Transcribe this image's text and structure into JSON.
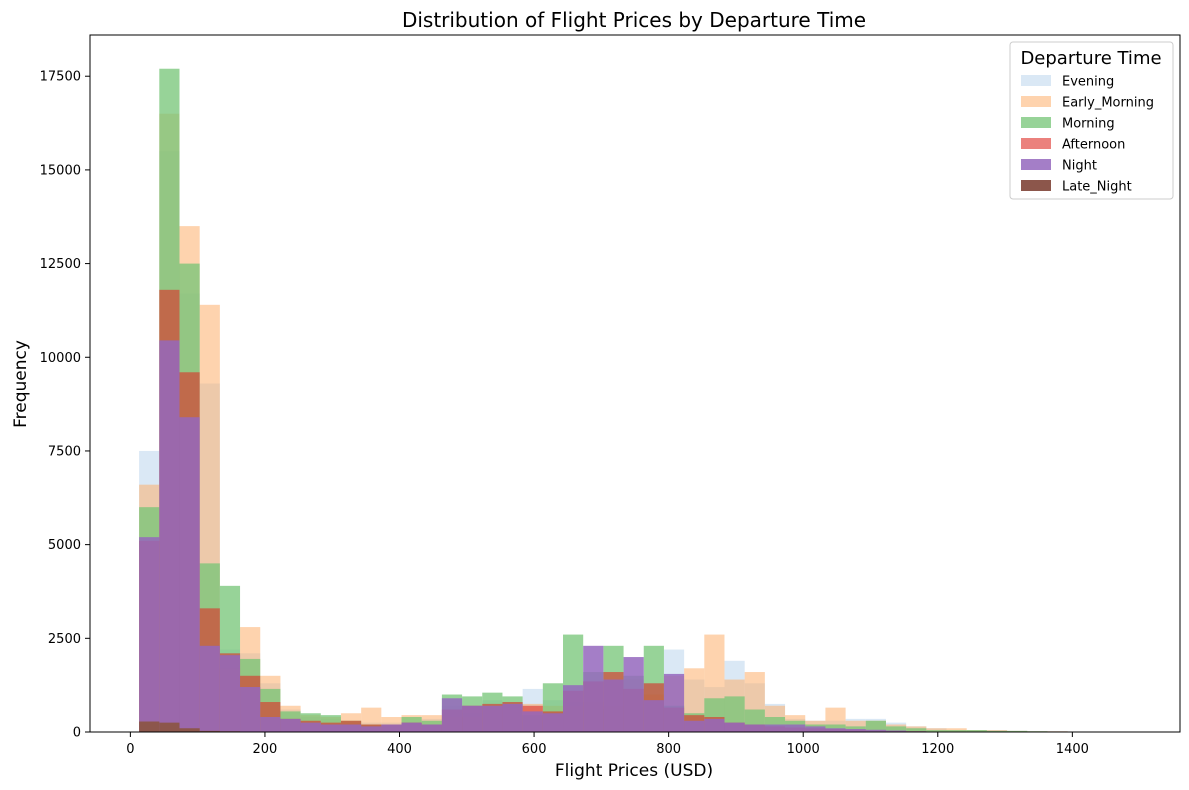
{
  "chart_data": {
    "type": "histogram",
    "title": "Distribution of Flight Prices by Departure Time",
    "xlabel": "Flight Prices (USD)",
    "ylabel": "Frequency",
    "xlim": [
      -60,
      1560
    ],
    "ylim": [
      0,
      18600
    ],
    "xticks": [
      0,
      200,
      400,
      600,
      800,
      1000,
      1200,
      1400
    ],
    "yticks": [
      0,
      2500,
      5000,
      7500,
      10000,
      12500,
      15000,
      17500
    ],
    "grid": false,
    "legend": {
      "title": "Departure Time",
      "placement": "top-right"
    },
    "series": [
      {
        "name": "Evening",
        "color": "#c6dbef",
        "alpha": 0.65,
        "bin_start": 13,
        "bin_width": 30,
        "counts": [
          7500,
          15500,
          11700,
          9300,
          2200,
          2100,
          1300,
          600,
          400,
          350,
          250,
          250,
          250,
          250,
          350,
          700,
          500,
          850,
          800,
          1150,
          850,
          800,
          600,
          400,
          500,
          1300,
          2200,
          1400,
          1200,
          1900,
          1300,
          750,
          350,
          300,
          300,
          350,
          350,
          250,
          150,
          100,
          50,
          50,
          50,
          30,
          20,
          20,
          10,
          10,
          10,
          5
        ]
      },
      {
        "name": "Early_Morning",
        "color": "#fdae6b",
        "alpha": 0.55,
        "bin_start": 13,
        "bin_width": 30,
        "counts": [
          6600,
          16500,
          13500,
          11400,
          1700,
          2800,
          1500,
          700,
          450,
          400,
          500,
          650,
          400,
          450,
          450,
          400,
          400,
          700,
          650,
          750,
          700,
          700,
          800,
          700,
          1400,
          1000,
          1500,
          1700,
          2600,
          1400,
          1600,
          700,
          450,
          300,
          650,
          300,
          300,
          200,
          150,
          100,
          100,
          50,
          50,
          30,
          20,
          20,
          10,
          10,
          10,
          5
        ]
      },
      {
        "name": "Morning",
        "color": "#74c476",
        "alpha": 0.75,
        "bin_start": 13,
        "bin_width": 30,
        "counts": [
          6000,
          17700,
          12500,
          4500,
          3900,
          1950,
          1150,
          550,
          500,
          450,
          300,
          200,
          200,
          400,
          300,
          1000,
          950,
          1050,
          950,
          450,
          1300,
          2600,
          1600,
          2300,
          1500,
          2300,
          700,
          500,
          900,
          950,
          600,
          400,
          300,
          200,
          200,
          150,
          300,
          150,
          100,
          50,
          50,
          50,
          30,
          30,
          20,
          10,
          10,
          10,
          5,
          5
        ]
      },
      {
        "name": "Afternoon",
        "color": "#de2d26",
        "alpha": 0.6,
        "bin_start": 13,
        "bin_width": 30,
        "counts": [
          5100,
          11800,
          9600,
          3300,
          2100,
          1500,
          800,
          350,
          300,
          250,
          300,
          200,
          200,
          250,
          200,
          600,
          700,
          750,
          800,
          700,
          550,
          1100,
          1350,
          1600,
          1150,
          1300,
          650,
          450,
          400,
          250,
          200,
          150,
          120,
          100,
          80,
          60,
          40,
          30,
          20,
          10,
          10,
          5,
          5,
          5,
          5,
          5,
          5,
          5,
          5,
          5
        ]
      },
      {
        "name": "Night",
        "color": "#9467bd",
        "alpha": 0.85,
        "bin_start": 13,
        "bin_width": 30,
        "counts": [
          5200,
          10450,
          8400,
          2300,
          2050,
          1200,
          400,
          350,
          250,
          200,
          200,
          150,
          200,
          250,
          200,
          900,
          700,
          700,
          750,
          550,
          500,
          1250,
          2300,
          1400,
          2000,
          850,
          1550,
          300,
          350,
          250,
          200,
          200,
          200,
          150,
          100,
          80,
          60,
          40,
          20,
          10,
          10,
          5,
          5,
          5,
          5,
          5,
          5,
          5,
          5,
          5
        ]
      },
      {
        "name": "Late_Night",
        "color": "#8c564b",
        "alpha": 1.0,
        "bin_start": 13,
        "bin_width": 30,
        "counts": [
          280,
          250,
          100,
          30,
          20,
          10,
          0,
          0,
          0,
          0,
          0,
          0,
          0,
          0,
          0,
          0,
          0,
          0,
          0,
          0,
          0,
          0,
          0,
          0,
          0,
          0,
          0,
          0,
          0,
          0,
          0,
          0,
          0,
          0,
          0,
          0,
          0,
          0,
          0,
          0,
          0,
          0,
          0,
          0,
          0,
          0,
          0,
          0,
          0,
          0
        ]
      }
    ]
  }
}
